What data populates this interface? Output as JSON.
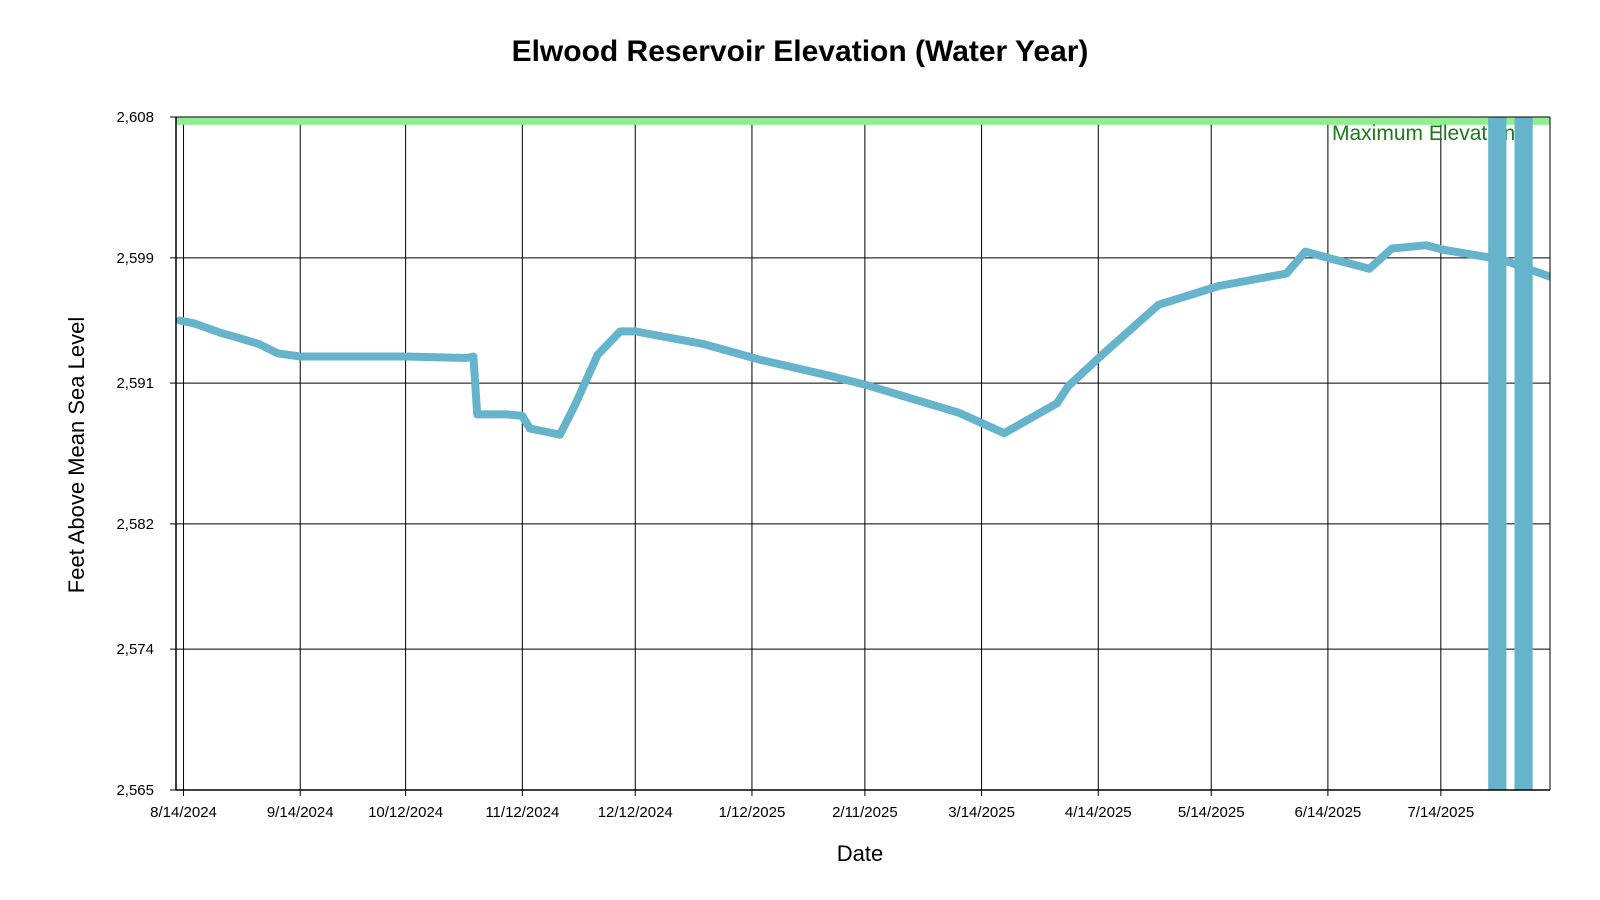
{
  "chart_data": {
    "type": "line",
    "title": "Elwood Reservoir Elevation (Water Year)",
    "xlabel": "Date",
    "ylabel": "Feet Above Mean Sea Level",
    "x_range": [
      "2024-08-12",
      "2025-08-12"
    ],
    "ylim": [
      2565,
      2608
    ],
    "y_ticks": [
      2565,
      2574,
      2582,
      2591,
      2599,
      2608
    ],
    "y_tick_labels": [
      "2,565",
      "2,574",
      "2,582",
      "2,591",
      "2,599",
      "2,608"
    ],
    "x_ticks": [
      "2024-08-14",
      "2024-09-14",
      "2024-10-12",
      "2024-11-12",
      "2024-12-12",
      "2025-01-12",
      "2025-02-11",
      "2025-03-14",
      "2025-04-14",
      "2025-05-14",
      "2025-06-14",
      "2025-07-14"
    ],
    "x_tick_labels": [
      "8/14/2024",
      "9/14/2024",
      "10/12/2024",
      "11/12/2024",
      "12/12/2024",
      "1/12/2025",
      "2/11/2025",
      "3/14/2025",
      "4/14/2025",
      "5/14/2025",
      "6/14/2025",
      "7/14/2025"
    ],
    "grid": true,
    "reference_band": {
      "label": "Maximum Elevation",
      "low": 2607.5,
      "high": 2608,
      "color": "#90ee90",
      "text_color": "#1a7a1a"
    },
    "series": [
      {
        "color": "#66b3cc",
        "x": [
          "2024-08-13",
          "2024-08-17",
          "2024-08-24",
          "2024-08-27",
          "2024-09-03",
          "2024-09-08",
          "2024-09-14",
          "2024-10-12",
          "2024-10-28",
          "2024-10-30",
          "2024-10-31",
          "2024-11-08",
          "2024-11-12",
          "2024-11-14",
          "2024-11-22",
          "2024-11-26",
          "2024-12-02",
          "2024-12-08",
          "2024-12-12",
          "2024-12-30",
          "2025-01-14",
          "2025-02-01",
          "2025-02-11",
          "2025-03-08",
          "2025-03-20",
          "2025-04-03",
          "2025-04-06",
          "2025-04-15",
          "2025-04-30",
          "2025-05-16",
          "2025-06-03",
          "2025-06-08",
          "2025-06-14",
          "2025-06-25",
          "2025-07-01",
          "2025-07-10",
          "2025-07-15",
          "2025-07-30",
          "2025-08-12"
        ],
        "y": [
          2595.0,
          2594.8,
          2594.2,
          2594.0,
          2593.5,
          2592.9,
          2592.7,
          2592.7,
          2592.6,
          2592.7,
          2589.0,
          2589.0,
          2588.9,
          2588.1,
          2587.7,
          2589.6,
          2592.8,
          2594.3,
          2594.3,
          2593.5,
          2592.5,
          2591.5,
          2590.9,
          2589.1,
          2587.8,
          2589.7,
          2590.8,
          2592.8,
          2596.0,
          2597.2,
          2598.0,
          2599.4,
          2599.0,
          2598.3,
          2599.6,
          2599.8,
          2599.5,
          2598.9,
          2597.8
        ]
      },
      {
        "color": "#66b3cc",
        "x": [
          "2025-07-29",
          "2025-07-29"
        ],
        "y": [
          2565,
          2608
        ]
      },
      {
        "color": "#66b3cc",
        "x": [
          "2025-08-05",
          "2025-08-05"
        ],
        "y": [
          2565,
          2608
        ]
      }
    ]
  }
}
